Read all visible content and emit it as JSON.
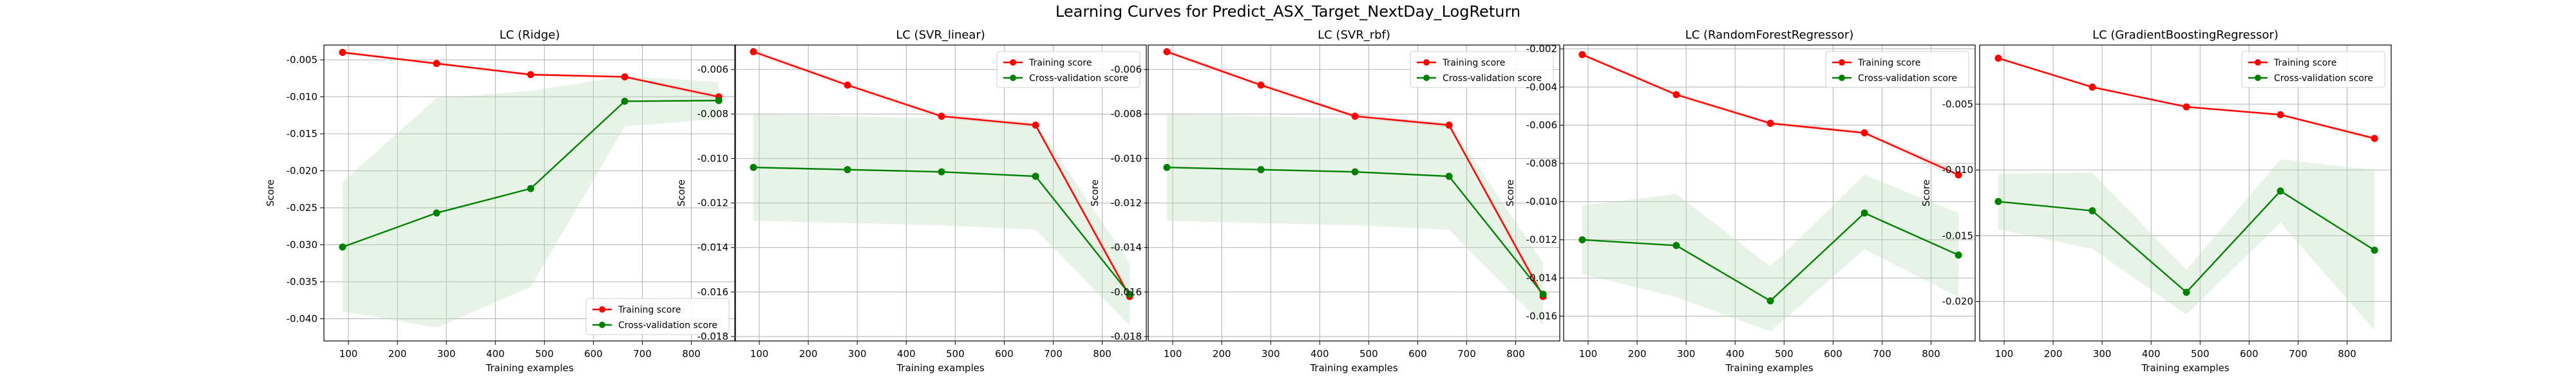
{
  "figure": {
    "suptitle": "Learning Curves for Predict_ASX_Target_NextDay_LogReturn",
    "colors": {
      "training": "#ff0000",
      "cv": "#008000",
      "band": "#b7dcb7",
      "grid": "#b0b0b0"
    }
  },
  "chart_data": [
    {
      "type": "line",
      "title": "LC (Ridge)",
      "xlabel": "Training examples",
      "ylabel": "Score",
      "xlim": [
        50,
        890
      ],
      "ylim": [
        -0.043,
        -0.003
      ],
      "xticks": [
        100,
        200,
        300,
        400,
        500,
        600,
        700,
        800
      ],
      "yticks": [
        -0.04,
        -0.035,
        -0.03,
        -0.025,
        -0.02,
        -0.015,
        -0.01,
        -0.005
      ],
      "ytick_labels": [
        "-0.040",
        "-0.035",
        "-0.030",
        "-0.025",
        "-0.020",
        "-0.015",
        "-0.010",
        "-0.005"
      ],
      "grid": true,
      "legend": {
        "position": "lower-right",
        "entries": [
          "Training score",
          "Cross-validation score"
        ]
      },
      "x": [
        88,
        280,
        472,
        664,
        856
      ],
      "series": [
        {
          "name": "Training score",
          "color": "#ff0000",
          "values": [
            -0.004,
            -0.0055,
            -0.007,
            -0.0073,
            -0.01
          ],
          "band_lo": [
            -0.0042,
            -0.0057,
            -0.0072,
            -0.0075,
            -0.0103
          ],
          "band_hi": [
            -0.0038,
            -0.0053,
            -0.0068,
            -0.0071,
            -0.0097
          ]
        },
        {
          "name": "Cross-validation score",
          "color": "#008000",
          "values": [
            -0.0303,
            -0.0257,
            -0.0224,
            -0.0106,
            -0.0105
          ],
          "band_lo": [
            -0.039,
            -0.0412,
            -0.0357,
            -0.014,
            -0.013
          ],
          "band_hi": [
            -0.0215,
            -0.0102,
            -0.0092,
            -0.0072,
            -0.008
          ]
        }
      ]
    },
    {
      "type": "line",
      "title": "LC (SVR_linear)",
      "xlabel": "Training examples",
      "ylabel": "Score",
      "xlim": [
        50,
        890
      ],
      "ylim": [
        -0.0182,
        -0.0049
      ],
      "xticks": [
        100,
        200,
        300,
        400,
        500,
        600,
        700,
        800
      ],
      "yticks": [
        -0.018,
        -0.016,
        -0.014,
        -0.012,
        -0.01,
        -0.008,
        -0.006
      ],
      "ytick_labels": [
        "-0.018",
        "-0.016",
        "-0.014",
        "-0.012",
        "-0.010",
        "-0.008",
        "-0.006"
      ],
      "grid": true,
      "legend": {
        "position": "upper-right",
        "entries": [
          "Training score",
          "Cross-validation score"
        ]
      },
      "x": [
        88,
        280,
        472,
        664,
        856
      ],
      "series": [
        {
          "name": "Training score",
          "color": "#ff0000",
          "values": [
            -0.0052,
            -0.0067,
            -0.0081,
            -0.0085,
            -0.0162
          ],
          "band_lo": [
            -0.0053,
            -0.0068,
            -0.0082,
            -0.0086,
            -0.0164
          ],
          "band_hi": [
            -0.0051,
            -0.0066,
            -0.008,
            -0.0084,
            -0.016
          ]
        },
        {
          "name": "Cross-validation score",
          "color": "#008000",
          "values": [
            -0.0104,
            -0.0105,
            -0.0106,
            -0.0108,
            -0.0161
          ],
          "band_lo": [
            -0.0128,
            -0.0129,
            -0.013,
            -0.0132,
            -0.0175
          ],
          "band_hi": [
            -0.008,
            -0.0081,
            -0.0082,
            -0.0084,
            -0.0147
          ]
        }
      ]
    },
    {
      "type": "line",
      "title": "LC (SVR_rbf)",
      "xlabel": "Training examples",
      "ylabel": "Score",
      "xlim": [
        50,
        890
      ],
      "ylim": [
        -0.0182,
        -0.0049
      ],
      "xticks": [
        100,
        200,
        300,
        400,
        500,
        600,
        700,
        800
      ],
      "yticks": [
        -0.018,
        -0.016,
        -0.014,
        -0.012,
        -0.01,
        -0.008,
        -0.006
      ],
      "ytick_labels": [
        "-0.018",
        "-0.016",
        "-0.014",
        "-0.012",
        "-0.010",
        "-0.008",
        "-0.006"
      ],
      "grid": true,
      "legend": {
        "position": "upper-right",
        "entries": [
          "Training score",
          "Cross-validation score"
        ]
      },
      "x": [
        88,
        280,
        472,
        664,
        856
      ],
      "series": [
        {
          "name": "Training score",
          "color": "#ff0000",
          "values": [
            -0.0052,
            -0.0067,
            -0.0081,
            -0.0085,
            -0.0162
          ],
          "band_lo": [
            -0.0053,
            -0.0068,
            -0.0082,
            -0.0086,
            -0.0164
          ],
          "band_hi": [
            -0.0051,
            -0.0066,
            -0.008,
            -0.0084,
            -0.016
          ]
        },
        {
          "name": "Cross-validation score",
          "color": "#008000",
          "values": [
            -0.0104,
            -0.0105,
            -0.0106,
            -0.0108,
            -0.0161
          ],
          "band_lo": [
            -0.0128,
            -0.0129,
            -0.013,
            -0.0132,
            -0.0175
          ],
          "band_hi": [
            -0.008,
            -0.0081,
            -0.0082,
            -0.0084,
            -0.0147
          ]
        }
      ]
    },
    {
      "type": "line",
      "title": "LC (RandomForestRegressor)",
      "xlabel": "Training examples",
      "ylabel": "Score",
      "xlim": [
        50,
        890
      ],
      "ylim": [
        -0.0173,
        -0.0018
      ],
      "xticks": [
        100,
        200,
        300,
        400,
        500,
        600,
        700,
        800
      ],
      "yticks": [
        -0.016,
        -0.014,
        -0.012,
        -0.01,
        -0.008,
        -0.006,
        -0.004,
        -0.002
      ],
      "ytick_labels": [
        "-0.016",
        "-0.014",
        "-0.012",
        "-0.010",
        "-0.008",
        "-0.006",
        "-0.004",
        "-0.002"
      ],
      "grid": true,
      "legend": {
        "position": "upper-right",
        "entries": [
          "Training score",
          "Cross-validation score"
        ]
      },
      "x": [
        88,
        280,
        472,
        664,
        856
      ],
      "series": [
        {
          "name": "Training score",
          "color": "#ff0000",
          "values": [
            -0.0023,
            -0.0044,
            -0.0059,
            -0.0064,
            -0.0086
          ],
          "band_lo": [
            -0.0024,
            -0.0045,
            -0.006,
            -0.0065,
            -0.0088
          ],
          "band_hi": [
            -0.0022,
            -0.0043,
            -0.0058,
            -0.0063,
            -0.0084
          ]
        },
        {
          "name": "Cross-validation score",
          "color": "#008000",
          "values": [
            -0.012,
            -0.0123,
            -0.0152,
            -0.0106,
            -0.0128
          ],
          "band_lo": [
            -0.0138,
            -0.015,
            -0.0168,
            -0.0125,
            -0.015
          ],
          "band_hi": [
            -0.0102,
            -0.0096,
            -0.0134,
            -0.0086,
            -0.0106
          ]
        }
      ]
    },
    {
      "type": "line",
      "title": "LC (GradientBoostingRegressor)",
      "xlabel": "Training examples",
      "ylabel": "Score",
      "xlim": [
        50,
        890
      ],
      "ylim": [
        -0.023,
        -0.0005
      ],
      "xticks": [
        100,
        200,
        300,
        400,
        500,
        600,
        700,
        800
      ],
      "yticks": [
        -0.02,
        -0.015,
        -0.01,
        -0.005
      ],
      "ytick_labels": [
        "-0.020",
        "-0.015",
        "-0.010",
        "-0.005"
      ],
      "grid": true,
      "legend": {
        "position": "upper-right",
        "entries": [
          "Training score",
          "Cross-validation score"
        ]
      },
      "x": [
        88,
        280,
        472,
        664,
        856
      ],
      "series": [
        {
          "name": "Training score",
          "color": "#ff0000",
          "values": [
            -0.0015,
            -0.0037,
            -0.0052,
            -0.0058,
            -0.0076
          ],
          "band_lo": [
            -0.0016,
            -0.0038,
            -0.0053,
            -0.0059,
            -0.0078
          ],
          "band_hi": [
            -0.0014,
            -0.0036,
            -0.0051,
            -0.0057,
            -0.0074
          ]
        },
        {
          "name": "Cross-validation score",
          "color": "#008000",
          "values": [
            -0.0124,
            -0.0131,
            -0.0193,
            -0.0116,
            -0.0161
          ],
          "band_lo": [
            -0.0145,
            -0.016,
            -0.021,
            -0.014,
            -0.0222
          ],
          "band_hi": [
            -0.0103,
            -0.0102,
            -0.0176,
            -0.0092,
            -0.01
          ]
        }
      ]
    }
  ]
}
